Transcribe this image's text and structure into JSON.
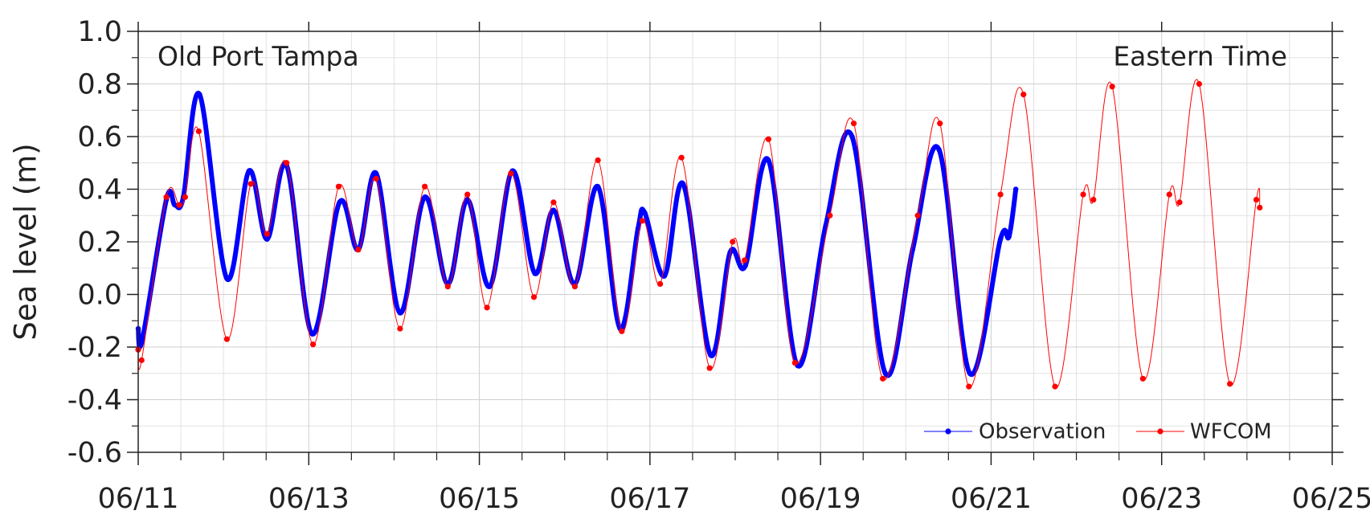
{
  "chart_data": {
    "type": "line",
    "annotations": [
      "Old Port Tampa",
      "Eastern Time"
    ],
    "y_label": "Sea level (m)",
    "xlim": [
      11,
      25
    ],
    "xticks": [
      {
        "value": 11,
        "label": "06/11"
      },
      {
        "value": 13,
        "label": "06/13"
      },
      {
        "value": 15,
        "label": "06/15"
      },
      {
        "value": 17,
        "label": "06/17"
      },
      {
        "value": 19,
        "label": "06/19"
      },
      {
        "value": 21,
        "label": "06/21"
      },
      {
        "value": 23,
        "label": "06/23"
      },
      {
        "value": 25,
        "label": "06/25"
      }
    ],
    "xminorticks": [
      11.5,
      12,
      12.5,
      13.5,
      14,
      14.5,
      15.5,
      16,
      16.5,
      17.5,
      18,
      18.5,
      19.5,
      20,
      20.5,
      21.5,
      22,
      22.5,
      23.5,
      24,
      24.5
    ],
    "ylim": [
      -0.6,
      1.0
    ],
    "yticks": [
      {
        "value": -0.6,
        "label": "-0.6"
      },
      {
        "value": -0.4,
        "label": "-0.4"
      },
      {
        "value": -0.2,
        "label": "-0.2"
      },
      {
        "value": 0,
        "label": "0.0"
      },
      {
        "value": 0.2,
        "label": "0.2"
      },
      {
        "value": 0.4,
        "label": "0.4"
      },
      {
        "value": 0.6,
        "label": "0.6"
      },
      {
        "value": 0.8,
        "label": "0.8"
      },
      {
        "value": 1.0,
        "label": "1.0"
      }
    ],
    "yminorticks": [
      -0.5,
      -0.3,
      -0.1,
      0.1,
      0.3,
      0.5,
      0.7,
      0.9
    ],
    "grid": true,
    "legend": "lower right",
    "series": [
      {
        "name": "Observation",
        "color": "#0000ff",
        "x": [
          11.0,
          11.05,
          11.33,
          11.43,
          11.53,
          11.72,
          12.04,
          12.3,
          12.51,
          12.74,
          13.04,
          13.36,
          13.58,
          13.79,
          14.07,
          14.36,
          14.63,
          14.86,
          15.12,
          15.39,
          15.65,
          15.87,
          16.12,
          16.39,
          16.65,
          16.86,
          16.94,
          17.17,
          17.39,
          17.71,
          17.94,
          18.12,
          18.39,
          18.73,
          19.06,
          19.37,
          19.76,
          20.08,
          20.39,
          20.75,
          21.11,
          21.21,
          21.29
        ],
        "values": [
          -0.13,
          -0.17,
          0.36,
          0.34,
          0.37,
          0.76,
          0.06,
          0.47,
          0.21,
          0.49,
          -0.15,
          0.35,
          0.17,
          0.46,
          -0.07,
          0.37,
          0.04,
          0.36,
          0.03,
          0.47,
          0.08,
          0.32,
          0.04,
          0.41,
          -0.13,
          0.25,
          0.31,
          0.07,
          0.42,
          -0.23,
          0.16,
          0.11,
          0.51,
          -0.27,
          0.26,
          0.6,
          -0.3,
          0.17,
          0.55,
          -0.3,
          0.21,
          0.22,
          0.4
        ]
      },
      {
        "name": "WFCOM",
        "color": "#ff0000",
        "x": [
          11.0,
          11.04,
          11.33,
          11.48,
          11.55,
          11.71,
          12.04,
          12.32,
          12.51,
          12.74,
          13.05,
          13.35,
          13.58,
          13.79,
          14.07,
          14.36,
          14.63,
          14.86,
          15.09,
          15.37,
          15.64,
          15.87,
          16.12,
          16.39,
          16.67,
          16.91,
          17.12,
          17.37,
          17.7,
          17.97,
          18.11,
          18.39,
          18.7,
          19.11,
          19.39,
          19.73,
          20.14,
          20.4,
          20.74,
          21.11,
          21.38,
          21.75,
          22.08,
          22.2,
          22.42,
          22.78,
          23.09,
          23.21,
          23.44,
          23.8,
          24.11,
          24.15
        ],
        "values": [
          -0.21,
          -0.25,
          0.37,
          0.34,
          0.37,
          0.62,
          -0.17,
          0.42,
          0.23,
          0.5,
          -0.19,
          0.41,
          0.17,
          0.44,
          -0.13,
          0.41,
          0.03,
          0.38,
          -0.05,
          0.46,
          -0.01,
          0.35,
          0.03,
          0.51,
          -0.14,
          0.28,
          0.04,
          0.52,
          -0.28,
          0.2,
          0.13,
          0.59,
          -0.26,
          0.3,
          0.65,
          -0.32,
          0.3,
          0.65,
          -0.35,
          0.38,
          0.76,
          -0.35,
          0.38,
          0.36,
          0.79,
          -0.32,
          0.38,
          0.35,
          0.8,
          -0.34,
          0.36,
          0.33
        ]
      }
    ]
  }
}
